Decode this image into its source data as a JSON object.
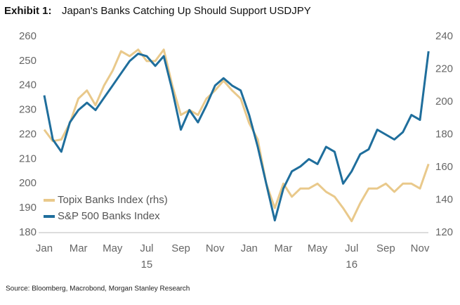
{
  "chart_data": {
    "type": "line",
    "exhibit": "Exhibit 1:",
    "title": "Japan's Banks Catching Up Should Support USDJPY",
    "source": "Source: Bloomberg, Macrobond, Morgan Stanley Research",
    "categories": [
      "Jan",
      null,
      null,
      null,
      "Mar",
      null,
      null,
      null,
      "May",
      null,
      null,
      null,
      "Jul",
      null,
      null,
      null,
      "Sep",
      null,
      null,
      null,
      "Nov",
      null,
      null,
      null,
      "Jan",
      null,
      null,
      null,
      "Mar",
      null,
      null,
      null,
      "May",
      null,
      null,
      null,
      "Jul",
      null,
      null,
      null,
      "Sep",
      null,
      null,
      null,
      "Nov",
      null
    ],
    "year_labels": [
      "15",
      "16"
    ],
    "series": [
      {
        "name": "Topix Banks Index (rhs)",
        "color": "#e9c98b",
        "axis": "y2",
        "values": [
          183,
          176,
          177,
          187,
          202,
          207,
          198,
          210,
          219,
          231,
          228,
          232,
          225,
          225,
          232,
          210,
          192,
          195,
          192,
          202,
          207,
          213,
          207,
          202,
          187,
          177,
          150,
          135,
          150,
          142,
          147,
          147,
          150,
          145,
          142,
          135,
          127,
          138,
          147,
          147,
          150,
          145,
          150,
          150,
          147,
          162
        ]
      },
      {
        "name": "S&P 500 Banks Index",
        "color": "#1f6e9c",
        "values": [
          236,
          218,
          213,
          225,
          230,
          233,
          230,
          235,
          240,
          245,
          250,
          253,
          252,
          248,
          252,
          238,
          222,
          230,
          225,
          232,
          240,
          243,
          240,
          238,
          228,
          215,
          200,
          185,
          198,
          205,
          207,
          210,
          208,
          215,
          213,
          200,
          205,
          212,
          214,
          222,
          220,
          218,
          221,
          228,
          226,
          254
        ]
      }
    ],
    "ylim": [
      180,
      260
    ],
    "yticks": [
      180,
      190,
      200,
      210,
      220,
      230,
      240,
      250,
      260
    ],
    "y2lim": [
      120,
      240
    ],
    "y2ticks": [
      120,
      140,
      160,
      180,
      200,
      220,
      240
    ],
    "legend": "lower left"
  }
}
